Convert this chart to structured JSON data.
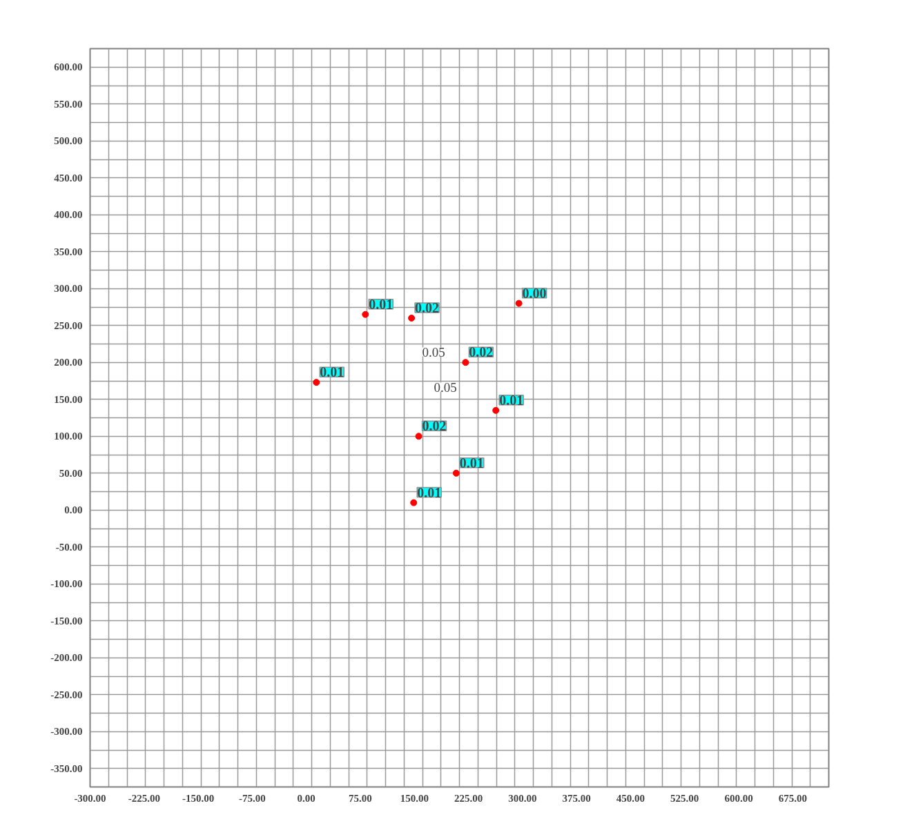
{
  "chart_data": {
    "type": "scatter",
    "x": [
      82,
      146,
      295,
      14,
      221,
      263,
      156,
      208,
      149
    ],
    "values": [
      265,
      260,
      280,
      173,
      200,
      135,
      100,
      50,
      10
    ],
    "color": "#ff0000",
    "marker": "circle",
    "annotations": [
      {
        "text": "0.01",
        "x": 82,
        "y": 265
      },
      {
        "text": "0.02",
        "x": 146,
        "y": 260
      },
      {
        "text": "0.00",
        "x": 295,
        "y": 280
      },
      {
        "text": "0.01",
        "x": 14,
        "y": 173
      },
      {
        "text": "0.02",
        "x": 221,
        "y": 200
      },
      {
        "text": "0.01",
        "x": 263,
        "y": 135
      },
      {
        "text": "0.02",
        "x": 156,
        "y": 100
      },
      {
        "text": "0.01",
        "x": 208,
        "y": 50
      },
      {
        "text": "0.01",
        "x": 149,
        "y": 10
      },
      "0.05",
      "0.05"
    ],
    "xlim": [
      -300,
      725
    ],
    "ylim": [
      -375,
      625
    ],
    "xticks": [
      {
        "value": -300,
        "label": "-300.00"
      },
      {
        "value": -225,
        "label": "-225.00"
      },
      {
        "value": -150,
        "label": "-150.00"
      },
      {
        "value": -75,
        "label": "-75.00"
      },
      {
        "value": 0,
        "label": "0.00"
      },
      {
        "value": 75,
        "label": "75.00"
      },
      {
        "value": 150,
        "label": "150.00"
      },
      {
        "value": 225,
        "label": "225.00"
      },
      {
        "value": 300,
        "label": "300.00"
      },
      {
        "value": 375,
        "label": "375.00"
      },
      {
        "value": 450,
        "label": "450.00"
      },
      {
        "value": 525,
        "label": "525.00"
      },
      {
        "value": 600,
        "label": "600.00"
      },
      {
        "value": 675,
        "label": "675.00"
      }
    ],
    "yticks": [
      {
        "value": -350,
        "label": "-350.00"
      },
      {
        "value": -300,
        "label": "-300.00"
      },
      {
        "value": -250,
        "label": "-250.00"
      },
      {
        "value": -200,
        "label": "-200.00"
      },
      {
        "value": -150,
        "label": "-150.00"
      },
      {
        "value": -100,
        "label": "-100.00"
      },
      {
        "value": -50,
        "label": "-50.00"
      },
      {
        "value": 0,
        "label": "0.00"
      },
      {
        "value": 50,
        "label": "50.00"
      },
      {
        "value": 100,
        "label": "100.00"
      },
      {
        "value": 150,
        "label": "150.00"
      },
      {
        "value": 200,
        "label": "200.00"
      },
      {
        "value": 250,
        "label": "250.00"
      },
      {
        "value": 300,
        "label": "300.00"
      },
      {
        "value": 350,
        "label": "350.00"
      },
      {
        "value": 400,
        "label": "400.00"
      },
      {
        "value": 450,
        "label": "450.00"
      },
      {
        "value": 500,
        "label": "500.00"
      },
      {
        "value": 550,
        "label": "550.00"
      },
      {
        "value": 600,
        "label": "600.00"
      }
    ],
    "grid": true
  }
}
